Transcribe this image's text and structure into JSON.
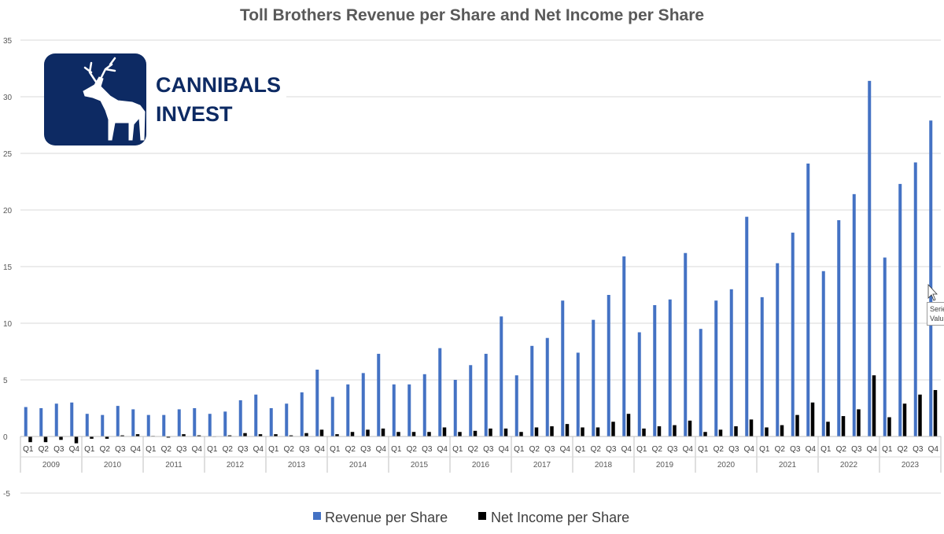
{
  "chart_data": {
    "type": "bar",
    "title": "Toll Brothers Revenue per Share and Net Income per Share",
    "ylim": [
      -5,
      35
    ],
    "yticks": [
      -5,
      0,
      5,
      10,
      15,
      20,
      25,
      30,
      35
    ],
    "grid": true,
    "legend_position": "bottom",
    "quarters": [
      "Q1",
      "Q2",
      "Q3",
      "Q4"
    ],
    "years": [
      "2009",
      "2010",
      "2011",
      "2012",
      "2013",
      "2014",
      "2015",
      "2016",
      "2017",
      "2018",
      "2019",
      "2020",
      "2021",
      "2022",
      "2023"
    ],
    "series": [
      {
        "name": "Revenue per Share",
        "color": "#4472c4",
        "values": [
          2.6,
          2.5,
          2.9,
          3.0,
          2.0,
          1.9,
          2.7,
          2.4,
          1.9,
          1.9,
          2.4,
          2.5,
          2.0,
          2.2,
          3.2,
          3.7,
          2.5,
          2.9,
          3.9,
          5.9,
          3.5,
          4.6,
          5.6,
          7.3,
          4.6,
          4.6,
          5.5,
          7.8,
          5.0,
          6.3,
          7.3,
          10.6,
          5.4,
          8.0,
          8.7,
          12.0,
          7.4,
          10.3,
          12.5,
          15.9,
          9.2,
          11.6,
          12.1,
          16.2,
          9.5,
          12.0,
          13.0,
          19.4,
          12.3,
          15.3,
          18.0,
          24.1,
          14.6,
          19.1,
          21.4,
          31.4,
          15.8,
          22.3,
          24.2,
          27.9
        ]
      },
      {
        "name": "Net Income per Share",
        "color": "#000000",
        "values": [
          -0.5,
          -0.5,
          -0.3,
          -0.6,
          -0.2,
          -0.2,
          0.1,
          0.2,
          0.05,
          -0.1,
          0.2,
          0.1,
          0.0,
          0.1,
          0.3,
          0.2,
          0.2,
          0.1,
          0.3,
          0.6,
          0.2,
          0.4,
          0.6,
          0.7,
          0.4,
          0.4,
          0.4,
          0.8,
          0.4,
          0.5,
          0.7,
          0.7,
          0.4,
          0.8,
          0.9,
          1.1,
          0.8,
          0.8,
          1.3,
          2.0,
          0.7,
          0.9,
          1.0,
          1.4,
          0.4,
          0.6,
          0.9,
          1.5,
          0.8,
          1.0,
          1.9,
          3.0,
          1.3,
          1.8,
          2.4,
          5.4,
          1.7,
          2.9,
          3.7,
          4.1
        ]
      }
    ]
  },
  "logo": {
    "line1": "CANNIBALS",
    "line2": "INVEST"
  },
  "tooltip": {
    "line1": "Serie",
    "line2": "Valu"
  }
}
